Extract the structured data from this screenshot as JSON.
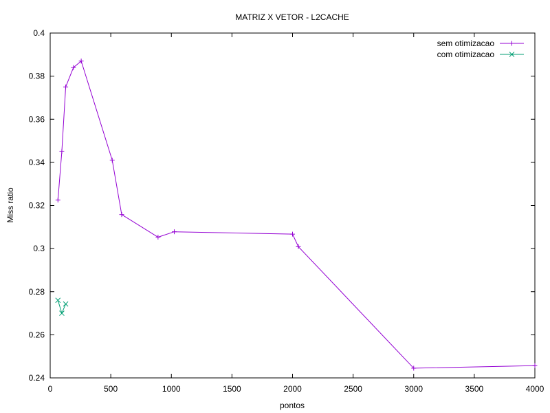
{
  "chart_data": {
    "type": "line",
    "title": "MATRIZ X VETOR - L2CACHE",
    "xlabel": "pontos",
    "ylabel": "Miss ratio",
    "xlim": [
      0,
      4000
    ],
    "ylim": [
      0.24,
      0.4
    ],
    "xticks": [
      "0",
      "500",
      "1000",
      "1500",
      "2000",
      "2500",
      "3000",
      "3500",
      "4000"
    ],
    "yticks": [
      "0.24",
      "0.26",
      "0.28",
      "0.3",
      "0.32",
      "0.34",
      "0.36",
      "0.38",
      "0.4"
    ],
    "xtick_values": [
      0,
      500,
      1000,
      1500,
      2000,
      2500,
      3000,
      3500,
      4000
    ],
    "ytick_values": [
      0.24,
      0.26,
      0.28,
      0.3,
      0.32,
      0.34,
      0.36,
      0.38,
      0.4
    ],
    "grid": false,
    "legend_position": "top-right",
    "series": [
      {
        "name": "sem otimizacao",
        "color": "#9400d3",
        "marker": "plus",
        "points": [
          [
            64,
            0.3225
          ],
          [
            96,
            0.345
          ],
          [
            128,
            0.375
          ],
          [
            192,
            0.384
          ],
          [
            256,
            0.387
          ],
          [
            512,
            0.341
          ],
          [
            590,
            0.3158
          ],
          [
            890,
            0.3053
          ],
          [
            1024,
            0.3078
          ],
          [
            2000,
            0.3067
          ],
          [
            2048,
            0.3009
          ],
          [
            3000,
            0.2445
          ],
          [
            4000,
            0.2457
          ]
        ]
      },
      {
        "name": "com otimizacao",
        "color": "#009e73",
        "marker": "x",
        "points": [
          [
            64,
            0.276
          ],
          [
            96,
            0.27
          ],
          [
            128,
            0.2743
          ]
        ]
      }
    ]
  }
}
